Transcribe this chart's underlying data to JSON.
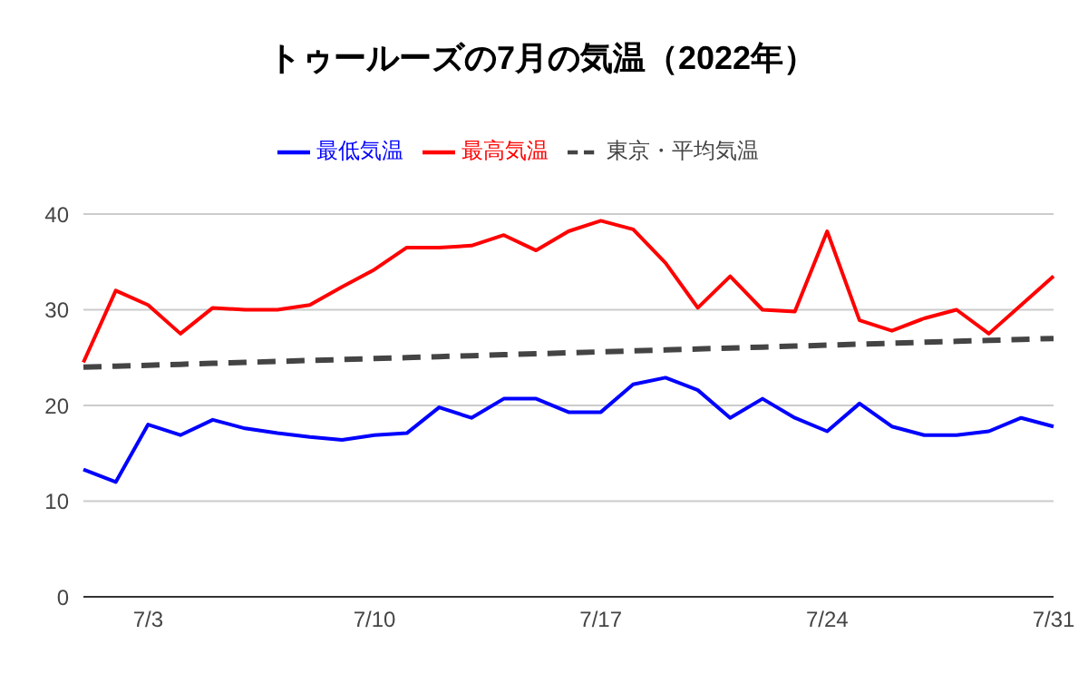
{
  "chart_data": {
    "type": "line",
    "title": "トゥールーズの7月の気温（2022年）",
    "categories": [
      null,
      null,
      "7/3",
      null,
      null,
      null,
      null,
      null,
      null,
      "7/10",
      null,
      null,
      null,
      null,
      null,
      null,
      "7/17",
      null,
      null,
      null,
      null,
      null,
      null,
      "7/24",
      null,
      null,
      null,
      null,
      null,
      null,
      "7/31"
    ],
    "series": [
      {
        "name": "最高気温",
        "color": "#ff0000",
        "values": [
          24.5,
          32.0,
          30.5,
          27.5,
          30.2,
          30.0,
          30.0,
          30.5,
          32.4,
          34.2,
          36.5,
          36.5,
          36.7,
          37.8,
          36.2,
          38.2,
          39.3,
          38.4,
          34.9,
          30.2,
          33.5,
          30.0,
          29.8,
          38.2,
          28.9,
          27.8,
          29.1,
          30.0,
          27.5,
          30.5,
          33.5
        ]
      },
      {
        "name": "最低気温",
        "color": "#0000ff",
        "values": [
          13.3,
          12.0,
          18.0,
          16.9,
          18.5,
          17.6,
          17.1,
          16.7,
          16.4,
          16.9,
          17.1,
          19.8,
          18.7,
          20.7,
          20.7,
          19.3,
          19.3,
          22.2,
          22.9,
          21.6,
          18.7,
          20.7,
          18.7,
          17.3,
          20.2,
          17.8,
          16.9,
          16.9,
          17.3,
          18.7,
          17.8
        ]
      },
      {
        "name": "東京・平均気温",
        "color": "#444444",
        "line_style": "dashed",
        "values": [
          24.0,
          24.1,
          24.2,
          24.3,
          24.4,
          24.5,
          24.6,
          24.7,
          24.8,
          24.9,
          25.0,
          25.1,
          25.2,
          25.3,
          25.4,
          25.5,
          25.6,
          25.7,
          25.8,
          25.9,
          26.0,
          26.1,
          26.2,
          26.3,
          26.4,
          26.5,
          26.6,
          26.7,
          26.8,
          26.9,
          27.0
        ]
      }
    ],
    "ylim": [
      0,
      40
    ],
    "yticks": [
      0,
      10,
      20,
      30,
      40
    ],
    "grid": "y",
    "legend": "top",
    "marker": "none"
  }
}
